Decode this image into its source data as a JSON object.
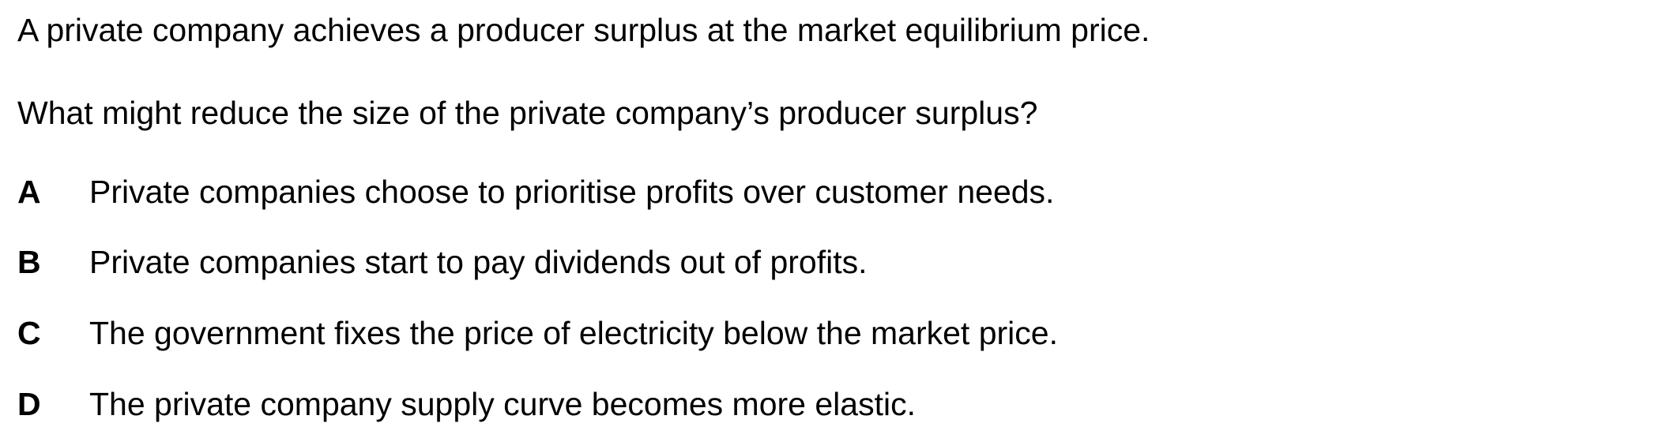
{
  "question": {
    "stem_line_1": "A private company achieves a producer surplus at the market equilibrium price.",
    "stem_line_2": "What might reduce the size of the private company’s producer surplus?",
    "options": [
      {
        "letter": "A",
        "text": "Private companies choose to prioritise profits over customer needs."
      },
      {
        "letter": "B",
        "text": "Private companies start to pay dividends out of profits."
      },
      {
        "letter": "C",
        "text": "The government fixes the price of electricity below the market price."
      },
      {
        "letter": "D",
        "text": "The private company supply curve becomes more elastic."
      }
    ]
  }
}
